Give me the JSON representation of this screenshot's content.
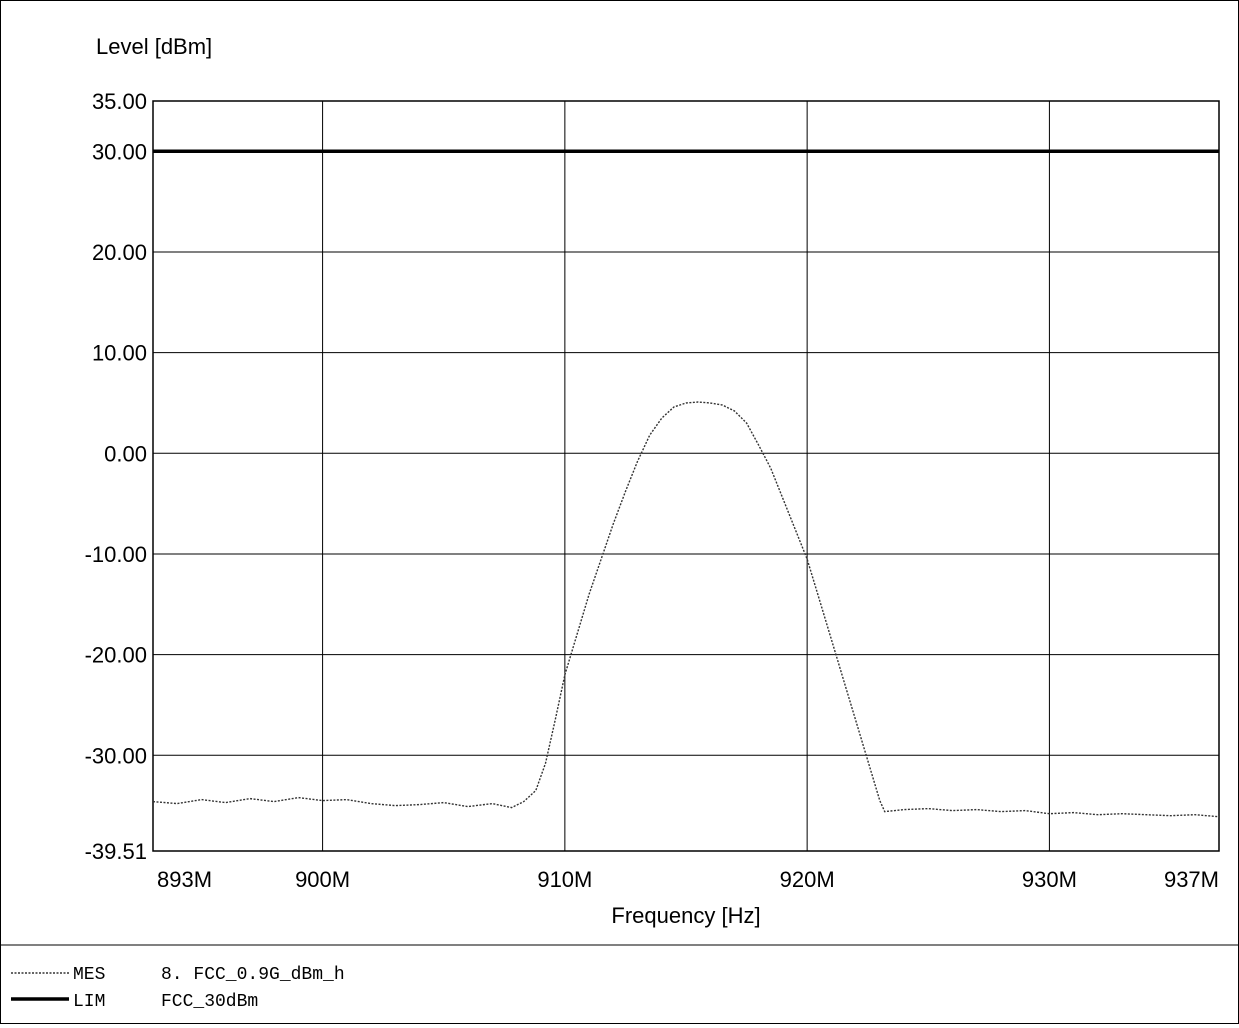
{
  "chart_data": {
    "type": "line",
    "ylabel": "Level [dBm]",
    "xlabel": "Frequency [Hz]",
    "xlim": [
      893,
      937
    ],
    "ylim": [
      -39.51,
      35.0
    ],
    "x_unit_suffix": "M",
    "y_ticks": [
      {
        "value": 35.0,
        "label": "35.00"
      },
      {
        "value": 30.0,
        "label": "30.00"
      },
      {
        "value": 20.0,
        "label": "20.00"
      },
      {
        "value": 10.0,
        "label": "10.00"
      },
      {
        "value": 0.0,
        "label": "0.00"
      },
      {
        "value": -10.0,
        "label": "-10.00"
      },
      {
        "value": -20.0,
        "label": "-20.00"
      },
      {
        "value": -30.0,
        "label": "-30.00"
      },
      {
        "value": -39.51,
        "label": "-39.51"
      }
    ],
    "x_ticks": [
      {
        "value": 893,
        "label": "893M"
      },
      {
        "value": 900,
        "label": "900M"
      },
      {
        "value": 910,
        "label": "910M"
      },
      {
        "value": 920,
        "label": "920M"
      },
      {
        "value": 930,
        "label": "930M"
      },
      {
        "value": 937,
        "label": "937M"
      }
    ],
    "grid": true,
    "legend_position": "bottom-left",
    "series": [
      {
        "name": "MES",
        "description": "8. FCC_0.9G_dBm_h",
        "style": "dotted",
        "x": [
          893,
          894,
          895,
          896,
          897,
          898,
          899,
          900,
          901,
          902,
          903,
          904,
          905,
          906,
          907,
          907.8,
          908.3,
          908.8,
          909.2,
          909.6,
          910,
          910.5,
          911,
          911.5,
          912,
          912.5,
          913,
          913.5,
          914,
          914.5,
          915,
          915.5,
          916,
          916.5,
          917,
          917.5,
          918,
          918.5,
          919,
          919.5,
          920,
          920.5,
          921,
          921.5,
          922,
          922.5,
          923,
          923.2,
          924,
          925,
          926,
          927,
          928,
          929,
          930,
          931,
          932,
          933,
          934,
          935,
          936,
          937
        ],
        "y": [
          -34.6,
          -34.8,
          -34.4,
          -34.7,
          -34.3,
          -34.6,
          -34.2,
          -34.5,
          -34.4,
          -34.8,
          -35.0,
          -34.9,
          -34.7,
          -35.1,
          -34.8,
          -35.2,
          -34.6,
          -33.5,
          -30.8,
          -26.5,
          -22.0,
          -18.0,
          -14.0,
          -10.5,
          -7.0,
          -3.8,
          -0.8,
          1.8,
          3.5,
          4.6,
          5.0,
          5.1,
          5.0,
          4.8,
          4.2,
          3.0,
          0.8,
          -1.5,
          -4.5,
          -7.5,
          -10.5,
          -14.5,
          -18.5,
          -22.5,
          -26.5,
          -30.5,
          -34.5,
          -35.6,
          -35.4,
          -35.3,
          -35.5,
          -35.4,
          -35.6,
          -35.5,
          -35.8,
          -35.7,
          -35.9,
          -35.8,
          -35.9,
          -36.0,
          -35.9,
          -36.1
        ]
      },
      {
        "name": "LIM",
        "description": "FCC_30dBm",
        "style": "solid-bold",
        "x": [
          893,
          937
        ],
        "y": [
          30.0,
          30.0
        ]
      }
    ]
  }
}
